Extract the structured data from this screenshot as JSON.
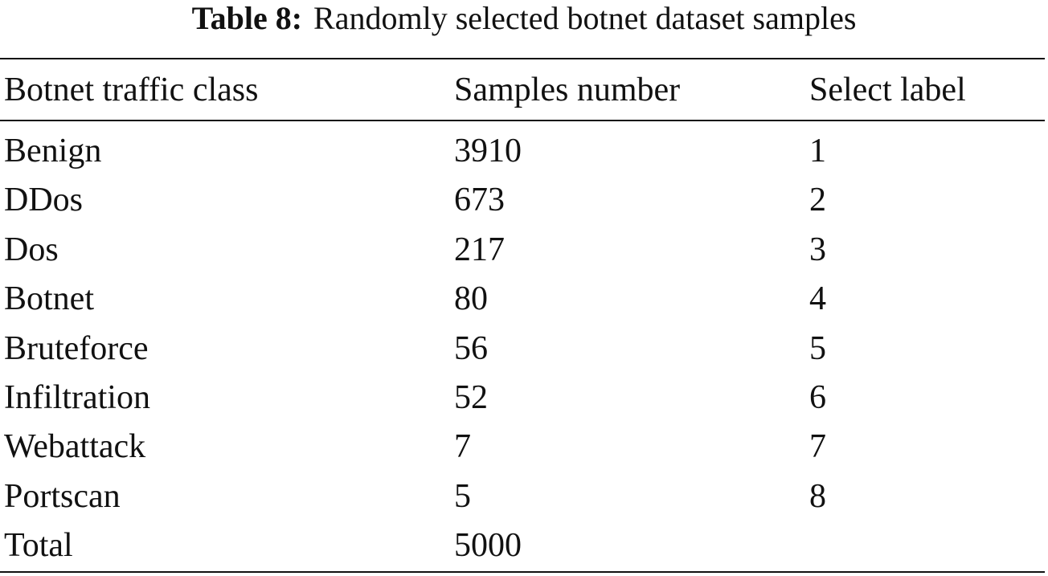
{
  "caption": {
    "label": "Table 8:",
    "text": "Randomly selected botnet dataset samples"
  },
  "table": {
    "header": [
      "Botnet traffic class",
      "Samples number",
      "Select label"
    ],
    "rows": [
      [
        "Benign",
        3910,
        1
      ],
      [
        "DDos",
        673,
        2
      ],
      [
        "Dos",
        217,
        3
      ],
      [
        "Botnet",
        80,
        4
      ],
      [
        "Bruteforce",
        56,
        5
      ],
      [
        "Infiltration",
        52,
        6
      ],
      [
        "Webattack",
        7,
        7
      ],
      [
        "Portscan",
        5,
        8
      ],
      [
        "Total",
        5000
      ]
    ]
  }
}
